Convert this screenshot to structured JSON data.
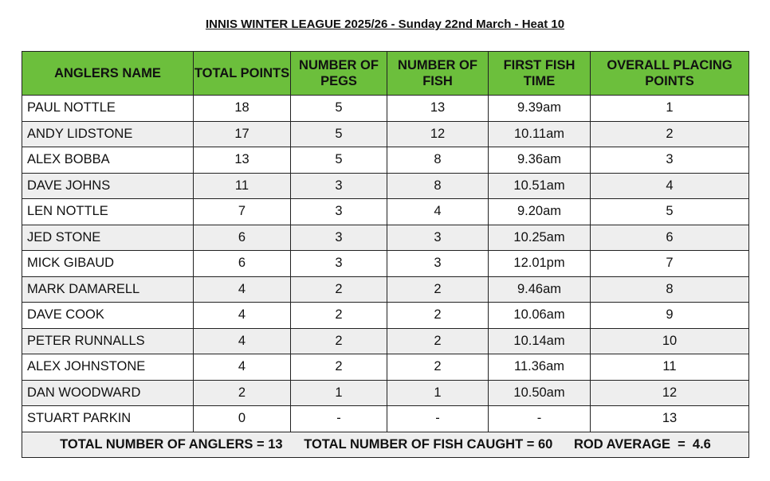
{
  "title": "INNIS WINTER LEAGUE 2025/26 - Sunday 22nd March - Heat 10",
  "colors": {
    "header": "#6cbf3c",
    "alt_row": "#eeeeee"
  },
  "columns": [
    "ANGLERS NAME",
    "TOTAL POINTS",
    "NUMBER OF PEGS",
    "NUMBER OF FISH",
    "FIRST FISH TIME",
    "OVERALL PLACING POINTS"
  ],
  "rows": [
    [
      "PAUL NOTTLE",
      "18",
      "5",
      "13",
      "9.39am",
      "1"
    ],
    [
      "ANDY LIDSTONE",
      "17",
      "5",
      "12",
      "10.11am",
      "2"
    ],
    [
      "ALEX BOBBA",
      "13",
      "5",
      "8",
      "9.36am",
      "3"
    ],
    [
      "DAVE JOHNS",
      "11",
      "3",
      "8",
      "10.51am",
      "4"
    ],
    [
      "LEN NOTTLE",
      "7",
      "3",
      "4",
      "9.20am",
      "5"
    ],
    [
      "JED STONE",
      "6",
      "3",
      "3",
      "10.25am",
      "6"
    ],
    [
      "MICK GIBAUD",
      "6",
      "3",
      "3",
      "12.01pm",
      "7"
    ],
    [
      "MARK DAMARELL",
      "4",
      "2",
      "2",
      "9.46am",
      "8"
    ],
    [
      "DAVE COOK",
      "4",
      "2",
      "2",
      "10.06am",
      "9"
    ],
    [
      "PETER RUNNALLS",
      "4",
      "2",
      "2",
      "10.14am",
      "10"
    ],
    [
      "ALEX JOHNSTONE",
      "4",
      "2",
      "2",
      "11.36am",
      "11"
    ],
    [
      "DAN WOODWARD",
      "2",
      "1",
      "1",
      "10.50am",
      "12"
    ],
    [
      "STUART PARKIN",
      "0",
      "-",
      "-",
      "-",
      "13"
    ]
  ],
  "footer": {
    "total_anglers": "TOTAL NUMBER OF ANGLERS = 13",
    "total_fish": "TOTAL NUMBER OF FISH CAUGHT = 60",
    "rod_average": "ROD AVERAGE  =  4.6"
  }
}
